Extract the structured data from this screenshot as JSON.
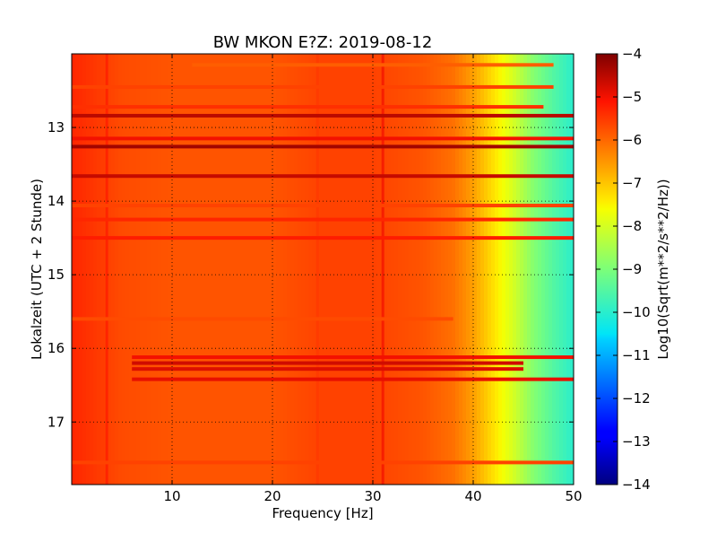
{
  "chart_data": {
    "type": "heatmap",
    "title": "BW MKON E?Z: 2019-08-12",
    "xlabel": "Frequency [Hz]",
    "ylabel": "Lokalzeit (UTC + 2 Stunde)",
    "xlim": [
      0,
      50
    ],
    "ylim": [
      17.85,
      12.0
    ],
    "y_inverted": true,
    "x_ticks": [
      10,
      20,
      30,
      40,
      50
    ],
    "y_ticks": [
      13,
      14,
      15,
      16,
      17
    ],
    "grid": true,
    "colorbar": {
      "label": "Log10(Sqrt(m**2/s**2/Hz))",
      "range": [
        -14,
        -4
      ],
      "ticks": [
        -4,
        -5,
        -6,
        -7,
        -8,
        -9,
        -10,
        -11,
        -12,
        -13,
        -14
      ],
      "colormap": "jet"
    },
    "background_profile": {
      "description_values": "approx. log10 amplitude vs frequency",
      "frequency": [
        0,
        5,
        10,
        20,
        25,
        30,
        35,
        38,
        40,
        42,
        44,
        46,
        48,
        50
      ],
      "value": [
        -5.3,
        -5.7,
        -5.8,
        -5.8,
        -5.6,
        -5.6,
        -5.8,
        -6.1,
        -6.6,
        -7.3,
        -8.0,
        -8.9,
        -9.5,
        -10.0
      ]
    },
    "bands": [
      {
        "time": 12.15,
        "f_from": 12,
        "f_to": 48,
        "value": -5.9
      },
      {
        "time": 12.45,
        "f_from": 0,
        "f_to": 48,
        "value": -5.6
      },
      {
        "time": 12.72,
        "f_from": 0,
        "f_to": 47,
        "value": -5.4
      },
      {
        "time": 12.84,
        "f_from": 0,
        "f_to": 50,
        "value": -4.5
      },
      {
        "time": 13.15,
        "f_from": 0,
        "f_to": 50,
        "value": -5.0
      },
      {
        "time": 13.26,
        "f_from": 0,
        "f_to": 50,
        "value": -4.3
      },
      {
        "time": 13.66,
        "f_from": 0,
        "f_to": 50,
        "value": -4.6
      },
      {
        "time": 14.06,
        "f_from": 0,
        "f_to": 50,
        "value": -5.6
      },
      {
        "time": 14.25,
        "f_from": 0,
        "f_to": 50,
        "value": -5.3
      },
      {
        "time": 14.5,
        "f_from": 0,
        "f_to": 50,
        "value": -5.2
      },
      {
        "time": 15.6,
        "f_from": 0,
        "f_to": 38,
        "value": -5.7
      },
      {
        "time": 16.12,
        "f_from": 6,
        "f_to": 50,
        "value": -5.0
      },
      {
        "time": 16.2,
        "f_from": 6,
        "f_to": 45,
        "value": -4.7
      },
      {
        "time": 16.28,
        "f_from": 6,
        "f_to": 45,
        "value": -4.8
      },
      {
        "time": 16.42,
        "f_from": 6,
        "f_to": 50,
        "value": -4.9
      },
      {
        "time": 17.55,
        "f_from": 0,
        "f_to": 50,
        "value": -5.6
      }
    ],
    "lines": [
      {
        "frequency": 31.0,
        "value": -5.0
      },
      {
        "frequency": 24.5,
        "value": -5.5
      },
      {
        "frequency": 3.5,
        "value": -5.2
      }
    ]
  }
}
